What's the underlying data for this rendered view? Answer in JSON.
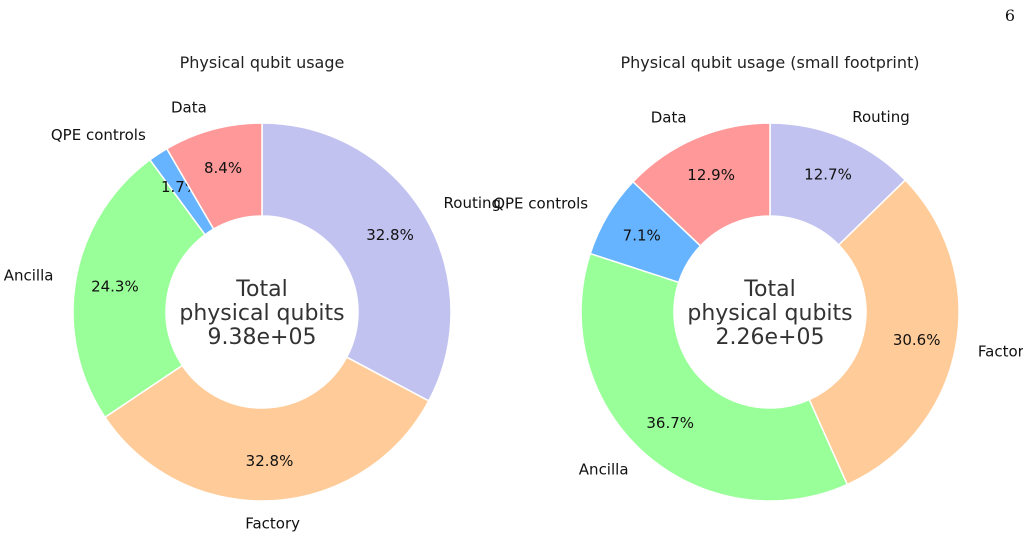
{
  "page_number": "6",
  "chart_data": [
    {
      "type": "pie",
      "donut": true,
      "title": "Physical qubit usage",
      "center_text": [
        "Total",
        "physical qubits",
        "9.38e+05"
      ],
      "slices": [
        {
          "label": "Routing",
          "value": 32.8,
          "pct_label": "32.8%",
          "color": "#c2c2f0"
        },
        {
          "label": "Factory",
          "value": 32.8,
          "pct_label": "32.8%",
          "color": "#ffcc99"
        },
        {
          "label": "Ancilla",
          "value": 24.3,
          "pct_label": "24.3%",
          "color": "#99ff99"
        },
        {
          "label": "QPE controls",
          "value": 1.7,
          "pct_label": "1.7%",
          "color": "#66b3ff"
        },
        {
          "label": "Data",
          "value": 8.4,
          "pct_label": "8.4%",
          "color": "#ff9999"
        }
      ]
    },
    {
      "type": "pie",
      "donut": true,
      "title": "Physical qubit usage (small footprint)",
      "center_text": [
        "Total",
        "physical qubits",
        "2.26e+05"
      ],
      "slices": [
        {
          "label": "Routing",
          "value": 12.7,
          "pct_label": "12.7%",
          "color": "#c2c2f0"
        },
        {
          "label": "Factory",
          "value": 30.6,
          "pct_label": "30.6%",
          "color": "#ffcc99"
        },
        {
          "label": "Ancilla",
          "value": 36.7,
          "pct_label": "36.7%",
          "color": "#99ff99"
        },
        {
          "label": "QPE controls",
          "value": 7.1,
          "pct_label": "7.1%",
          "color": "#66b3ff"
        },
        {
          "label": "Data",
          "value": 12.9,
          "pct_label": "12.9%",
          "color": "#ff9999"
        }
      ]
    }
  ]
}
